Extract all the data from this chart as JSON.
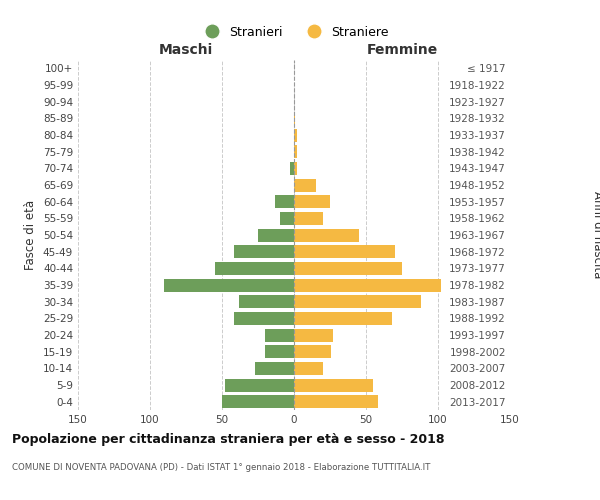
{
  "age_groups": [
    "0-4",
    "5-9",
    "10-14",
    "15-19",
    "20-24",
    "25-29",
    "30-34",
    "35-39",
    "40-44",
    "45-49",
    "50-54",
    "55-59",
    "60-64",
    "65-69",
    "70-74",
    "75-79",
    "80-84",
    "85-89",
    "90-94",
    "95-99",
    "100+"
  ],
  "birth_years": [
    "2013-2017",
    "2008-2012",
    "2003-2007",
    "1998-2002",
    "1993-1997",
    "1988-1992",
    "1983-1987",
    "1978-1982",
    "1973-1977",
    "1968-1972",
    "1963-1967",
    "1958-1962",
    "1953-1957",
    "1948-1952",
    "1943-1947",
    "1938-1942",
    "1933-1937",
    "1928-1932",
    "1923-1927",
    "1918-1922",
    "≤ 1917"
  ],
  "maschi": [
    50,
    48,
    27,
    20,
    20,
    42,
    38,
    90,
    55,
    42,
    25,
    10,
    13,
    0,
    3,
    0,
    0,
    0,
    0,
    0,
    0
  ],
  "femmine": [
    58,
    55,
    20,
    26,
    27,
    68,
    88,
    102,
    75,
    70,
    45,
    20,
    25,
    15,
    2,
    2,
    2,
    1,
    0,
    0,
    0
  ],
  "male_color": "#6d9e5a",
  "female_color": "#f5b942",
  "title": "Popolazione per cittadinanza straniera per età e sesso - 2018",
  "subtitle": "COMUNE DI NOVENTA PADOVANA (PD) - Dati ISTAT 1° gennaio 2018 - Elaborazione TUTTITALIA.IT",
  "xlabel_left": "Maschi",
  "xlabel_right": "Femmine",
  "ylabel_left": "Fasce di età",
  "ylabel_right": "Anni di nascita",
  "legend_male": "Stranieri",
  "legend_female": "Straniere",
  "xlim": 150,
  "background_color": "#ffffff",
  "grid_color": "#cccccc"
}
